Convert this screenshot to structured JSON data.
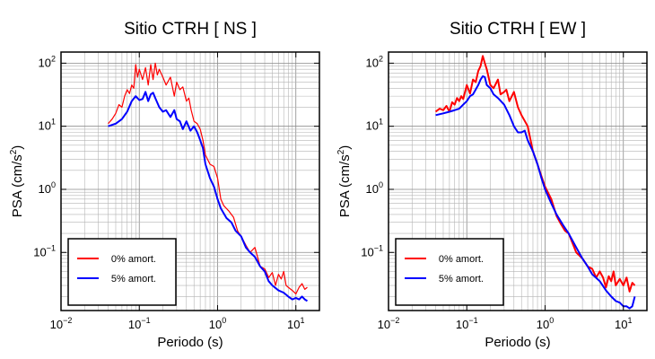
{
  "chart_data": [
    {
      "type": "line",
      "title": "Sitio CTRH [ NS ]",
      "xlabel": "Periodo (s)",
      "ylabel_main": "PSA (cm/s",
      "ylabel_sup": "2",
      "ylabel_close": ")",
      "xscale": "log",
      "yscale": "log",
      "xlim": [
        0.01,
        20
      ],
      "ylim": [
        0.012,
        150
      ],
      "grid": true,
      "legend_position": "bottom-left",
      "xticks": [
        {
          "value": 0.01,
          "base": "10",
          "exp": "−2"
        },
        {
          "value": 0.1,
          "base": "10",
          "exp": "−1"
        },
        {
          "value": 1,
          "base": "10",
          "exp": "0"
        },
        {
          "value": 10,
          "base": "10",
          "exp": "1"
        }
      ],
      "yticks": [
        {
          "value": 0.1,
          "base": "10",
          "exp": "−1"
        },
        {
          "value": 1,
          "base": "10",
          "exp": "0"
        },
        {
          "value": 10,
          "base": "10",
          "exp": "1"
        },
        {
          "value": 100,
          "base": "10",
          "exp": "2"
        }
      ],
      "series": [
        {
          "name": "0% amort.",
          "color": "#ff0000",
          "width": 1.2,
          "points": [
            [
              0.04,
              11
            ],
            [
              0.045,
              13
            ],
            [
              0.05,
              16
            ],
            [
              0.055,
              22
            ],
            [
              0.06,
              20
            ],
            [
              0.065,
              30
            ],
            [
              0.07,
              38
            ],
            [
              0.075,
              33
            ],
            [
              0.08,
              45
            ],
            [
              0.085,
              40
            ],
            [
              0.09,
              95
            ],
            [
              0.095,
              60
            ],
            [
              0.1,
              80
            ],
            [
              0.11,
              55
            ],
            [
              0.12,
              85
            ],
            [
              0.13,
              45
            ],
            [
              0.14,
              95
            ],
            [
              0.15,
              55
            ],
            [
              0.16,
              100
            ],
            [
              0.17,
              65
            ],
            [
              0.18,
              80
            ],
            [
              0.2,
              60
            ],
            [
              0.22,
              45
            ],
            [
              0.25,
              60
            ],
            [
              0.28,
              30
            ],
            [
              0.3,
              50
            ],
            [
              0.33,
              38
            ],
            [
              0.36,
              42
            ],
            [
              0.4,
              25
            ],
            [
              0.43,
              28
            ],
            [
              0.46,
              18
            ],
            [
              0.5,
              12
            ],
            [
              0.55,
              11
            ],
            [
              0.6,
              9
            ],
            [
              0.65,
              6
            ],
            [
              0.7,
              3.5
            ],
            [
              0.8,
              2.5
            ],
            [
              0.9,
              2.3
            ],
            [
              1.0,
              1.5
            ],
            [
              1.1,
              0.7
            ],
            [
              1.2,
              0.55
            ],
            [
              1.4,
              0.45
            ],
            [
              1.6,
              0.36
            ],
            [
              1.8,
              0.22
            ],
            [
              2.0,
              0.18
            ],
            [
              2.3,
              0.13
            ],
            [
              2.6,
              0.1
            ],
            [
              3.0,
              0.12
            ],
            [
              3.5,
              0.06
            ],
            [
              4.0,
              0.055
            ],
            [
              4.5,
              0.04
            ],
            [
              5.0,
              0.048
            ],
            [
              5.5,
              0.03
            ],
            [
              6.0,
              0.045
            ],
            [
              6.5,
              0.038
            ],
            [
              7.0,
              0.05
            ],
            [
              7.5,
              0.03
            ],
            [
              8,
              0.028
            ],
            [
              9,
              0.025
            ],
            [
              10,
              0.022
            ],
            [
              11,
              0.028
            ],
            [
              12,
              0.032
            ],
            [
              13,
              0.026
            ],
            [
              14,
              0.028
            ]
          ]
        },
        {
          "name": "5% amort.",
          "color": "#0000ff",
          "width": 2,
          "points": [
            [
              0.04,
              10
            ],
            [
              0.05,
              11
            ],
            [
              0.06,
              13
            ],
            [
              0.07,
              17
            ],
            [
              0.08,
              25
            ],
            [
              0.09,
              30
            ],
            [
              0.1,
              26
            ],
            [
              0.11,
              27
            ],
            [
              0.12,
              35
            ],
            [
              0.13,
              25
            ],
            [
              0.14,
              32
            ],
            [
              0.15,
              34
            ],
            [
              0.16,
              28
            ],
            [
              0.18,
              20
            ],
            [
              0.2,
              17
            ],
            [
              0.22,
              18
            ],
            [
              0.25,
              14
            ],
            [
              0.28,
              18
            ],
            [
              0.3,
              13
            ],
            [
              0.33,
              12
            ],
            [
              0.36,
              9
            ],
            [
              0.4,
              12
            ],
            [
              0.45,
              8.5
            ],
            [
              0.5,
              10
            ],
            [
              0.55,
              8
            ],
            [
              0.6,
              6
            ],
            [
              0.65,
              4.5
            ],
            [
              0.7,
              2.5
            ],
            [
              0.8,
              1.5
            ],
            [
              0.9,
              1.1
            ],
            [
              1.0,
              0.7
            ],
            [
              1.1,
              0.5
            ],
            [
              1.3,
              0.35
            ],
            [
              1.5,
              0.3
            ],
            [
              1.7,
              0.22
            ],
            [
              2.0,
              0.18
            ],
            [
              2.3,
              0.12
            ],
            [
              2.6,
              0.1
            ],
            [
              3.0,
              0.085
            ],
            [
              3.5,
              0.06
            ],
            [
              4.0,
              0.05
            ],
            [
              4.5,
              0.035
            ],
            [
              5,
              0.03
            ],
            [
              6,
              0.025
            ],
            [
              7,
              0.023
            ],
            [
              8,
              0.02
            ],
            [
              9,
              0.018
            ],
            [
              10,
              0.019
            ],
            [
              11,
              0.018
            ],
            [
              12,
              0.02
            ],
            [
              13,
              0.018
            ],
            [
              14,
              0.017
            ]
          ]
        }
      ]
    },
    {
      "type": "line",
      "title": "Sitio CTRH [ EW ]",
      "xlabel": "Periodo (s)",
      "ylabel_main": "PSA (cm/s",
      "ylabel_sup": "2",
      "ylabel_close": ")",
      "xscale": "log",
      "yscale": "log",
      "xlim": [
        0.01,
        20
      ],
      "ylim": [
        0.012,
        150
      ],
      "grid": true,
      "legend_position": "bottom-left",
      "xticks": [
        {
          "value": 0.01,
          "base": "10",
          "exp": "−2"
        },
        {
          "value": 0.1,
          "base": "10",
          "exp": "−1"
        },
        {
          "value": 1,
          "base": "10",
          "exp": "0"
        },
        {
          "value": 10,
          "base": "10",
          "exp": "1"
        }
      ],
      "yticks": [
        {
          "value": 0.1,
          "base": "10",
          "exp": "−1"
        },
        {
          "value": 1,
          "base": "10",
          "exp": "0"
        },
        {
          "value": 10,
          "base": "10",
          "exp": "1"
        },
        {
          "value": 100,
          "base": "10",
          "exp": "2"
        }
      ],
      "series": [
        {
          "name": "0% amort.",
          "color": "#ff0000",
          "width": 2,
          "points": [
            [
              0.04,
              17
            ],
            [
              0.045,
              19
            ],
            [
              0.05,
              18
            ],
            [
              0.055,
              21
            ],
            [
              0.06,
              17
            ],
            [
              0.065,
              24
            ],
            [
              0.07,
              22
            ],
            [
              0.075,
              28
            ],
            [
              0.08,
              25
            ],
            [
              0.085,
              30
            ],
            [
              0.09,
              27
            ],
            [
              0.1,
              45
            ],
            [
              0.11,
              33
            ],
            [
              0.12,
              55
            ],
            [
              0.13,
              50
            ],
            [
              0.14,
              75
            ],
            [
              0.15,
              90
            ],
            [
              0.16,
              130
            ],
            [
              0.17,
              100
            ],
            [
              0.18,
              80
            ],
            [
              0.2,
              45
            ],
            [
              0.22,
              40
            ],
            [
              0.25,
              55
            ],
            [
              0.27,
              32
            ],
            [
              0.3,
              35
            ],
            [
              0.32,
              38
            ],
            [
              0.35,
              25
            ],
            [
              0.4,
              35
            ],
            [
              0.45,
              20
            ],
            [
              0.5,
              15
            ],
            [
              0.6,
              10
            ],
            [
              0.7,
              4
            ],
            [
              0.8,
              2.5
            ],
            [
              0.9,
              1.6
            ],
            [
              1.0,
              1.1
            ],
            [
              1.2,
              0.7
            ],
            [
              1.4,
              0.38
            ],
            [
              1.6,
              0.28
            ],
            [
              1.8,
              0.22
            ],
            [
              2.0,
              0.2
            ],
            [
              2.5,
              0.1
            ],
            [
              3.0,
              0.08
            ],
            [
              3.5,
              0.06
            ],
            [
              4,
              0.055
            ],
            [
              4.5,
              0.04
            ],
            [
              5,
              0.05
            ],
            [
              5.5,
              0.04
            ],
            [
              6,
              0.028
            ],
            [
              6.5,
              0.042
            ],
            [
              7,
              0.035
            ],
            [
              7.5,
              0.05
            ],
            [
              8,
              0.03
            ],
            [
              9,
              0.038
            ],
            [
              10,
              0.03
            ],
            [
              11,
              0.04
            ],
            [
              12,
              0.024
            ],
            [
              13,
              0.033
            ],
            [
              14,
              0.03
            ]
          ]
        },
        {
          "name": "5% amort.",
          "color": "#0000ff",
          "width": 2,
          "points": [
            [
              0.04,
              15
            ],
            [
              0.05,
              16
            ],
            [
              0.06,
              17
            ],
            [
              0.07,
              18
            ],
            [
              0.08,
              19
            ],
            [
              0.09,
              22
            ],
            [
              0.1,
              25
            ],
            [
              0.11,
              30
            ],
            [
              0.12,
              32
            ],
            [
              0.14,
              45
            ],
            [
              0.15,
              55
            ],
            [
              0.16,
              62
            ],
            [
              0.17,
              60
            ],
            [
              0.18,
              45
            ],
            [
              0.2,
              40
            ],
            [
              0.22,
              32
            ],
            [
              0.25,
              28
            ],
            [
              0.3,
              22
            ],
            [
              0.35,
              15
            ],
            [
              0.4,
              10
            ],
            [
              0.45,
              8
            ],
            [
              0.5,
              8
            ],
            [
              0.55,
              8.5
            ],
            [
              0.6,
              6
            ],
            [
              0.7,
              4
            ],
            [
              0.8,
              2.5
            ],
            [
              0.9,
              1.5
            ],
            [
              1.0,
              1.0
            ],
            [
              1.2,
              0.6
            ],
            [
              1.4,
              0.4
            ],
            [
              1.7,
              0.27
            ],
            [
              2.0,
              0.2
            ],
            [
              2.5,
              0.12
            ],
            [
              3.0,
              0.08
            ],
            [
              3.5,
              0.06
            ],
            [
              4,
              0.045
            ],
            [
              5,
              0.035
            ],
            [
              6,
              0.025
            ],
            [
              7,
              0.02
            ],
            [
              8,
              0.017
            ],
            [
              9,
              0.016
            ],
            [
              10,
              0.014
            ],
            [
              11,
              0.014
            ],
            [
              12,
              0.013
            ],
            [
              13,
              0.014
            ],
            [
              14,
              0.02
            ]
          ]
        }
      ]
    }
  ]
}
